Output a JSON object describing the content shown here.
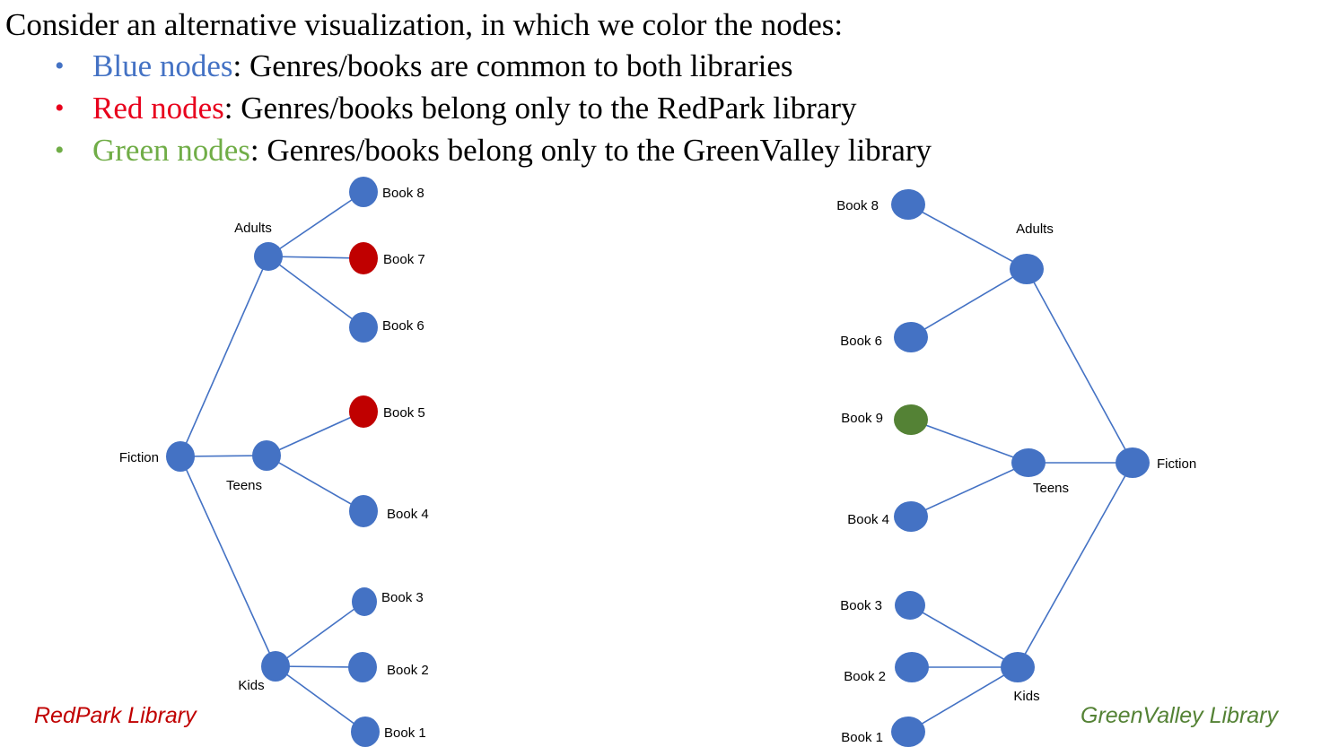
{
  "header": {
    "intro": "Consider an alternative visualization, in which we color the nodes:",
    "bullets": [
      {
        "term": "Blue nodes",
        "rest": ": Genres/books are common to both libraries",
        "color": "#4472C4"
      },
      {
        "term": "Red nodes",
        "rest": ": Genres/books belong only to the RedPark library",
        "color": "#E8001C"
      },
      {
        "term": "Green nodes",
        "rest": ": Genres/books belong only to the GreenValley library",
        "color": "#70AD47"
      }
    ]
  },
  "colors": {
    "blue": "#4472C4",
    "red": "#C00000",
    "green": "#548235",
    "edge": "#4472C4"
  },
  "trees": [
    {
      "library_label": "RedPark Library",
      "label_color": "#C00000",
      "root": "Fiction",
      "genres": [
        {
          "name": "Adults",
          "books": [
            {
              "name": "Book 8",
              "color": "blue"
            },
            {
              "name": "Book 7",
              "color": "red"
            },
            {
              "name": "Book 6",
              "color": "blue"
            }
          ]
        },
        {
          "name": "Teens",
          "books": [
            {
              "name": "Book 5",
              "color": "red"
            },
            {
              "name": "Book 4",
              "color": "blue"
            }
          ]
        },
        {
          "name": "Kids",
          "books": [
            {
              "name": "Book 3",
              "color": "blue"
            },
            {
              "name": "Book 2",
              "color": "blue"
            },
            {
              "name": "Book 1",
              "color": "blue"
            }
          ]
        }
      ]
    },
    {
      "library_label": "GreenValley Library",
      "label_color": "#548235",
      "root": "Fiction",
      "genres": [
        {
          "name": "Adults",
          "books": [
            {
              "name": "Book 8",
              "color": "blue"
            },
            {
              "name": "Book 6",
              "color": "blue"
            }
          ]
        },
        {
          "name": "Teens",
          "books": [
            {
              "name": "Book 9",
              "color": "green"
            },
            {
              "name": "Book 4",
              "color": "blue"
            }
          ]
        },
        {
          "name": "Kids",
          "books": [
            {
              "name": "Book 3",
              "color": "blue"
            },
            {
              "name": "Book 2",
              "color": "blue"
            },
            {
              "name": "Book 1",
              "color": "blue"
            }
          ]
        }
      ]
    }
  ]
}
